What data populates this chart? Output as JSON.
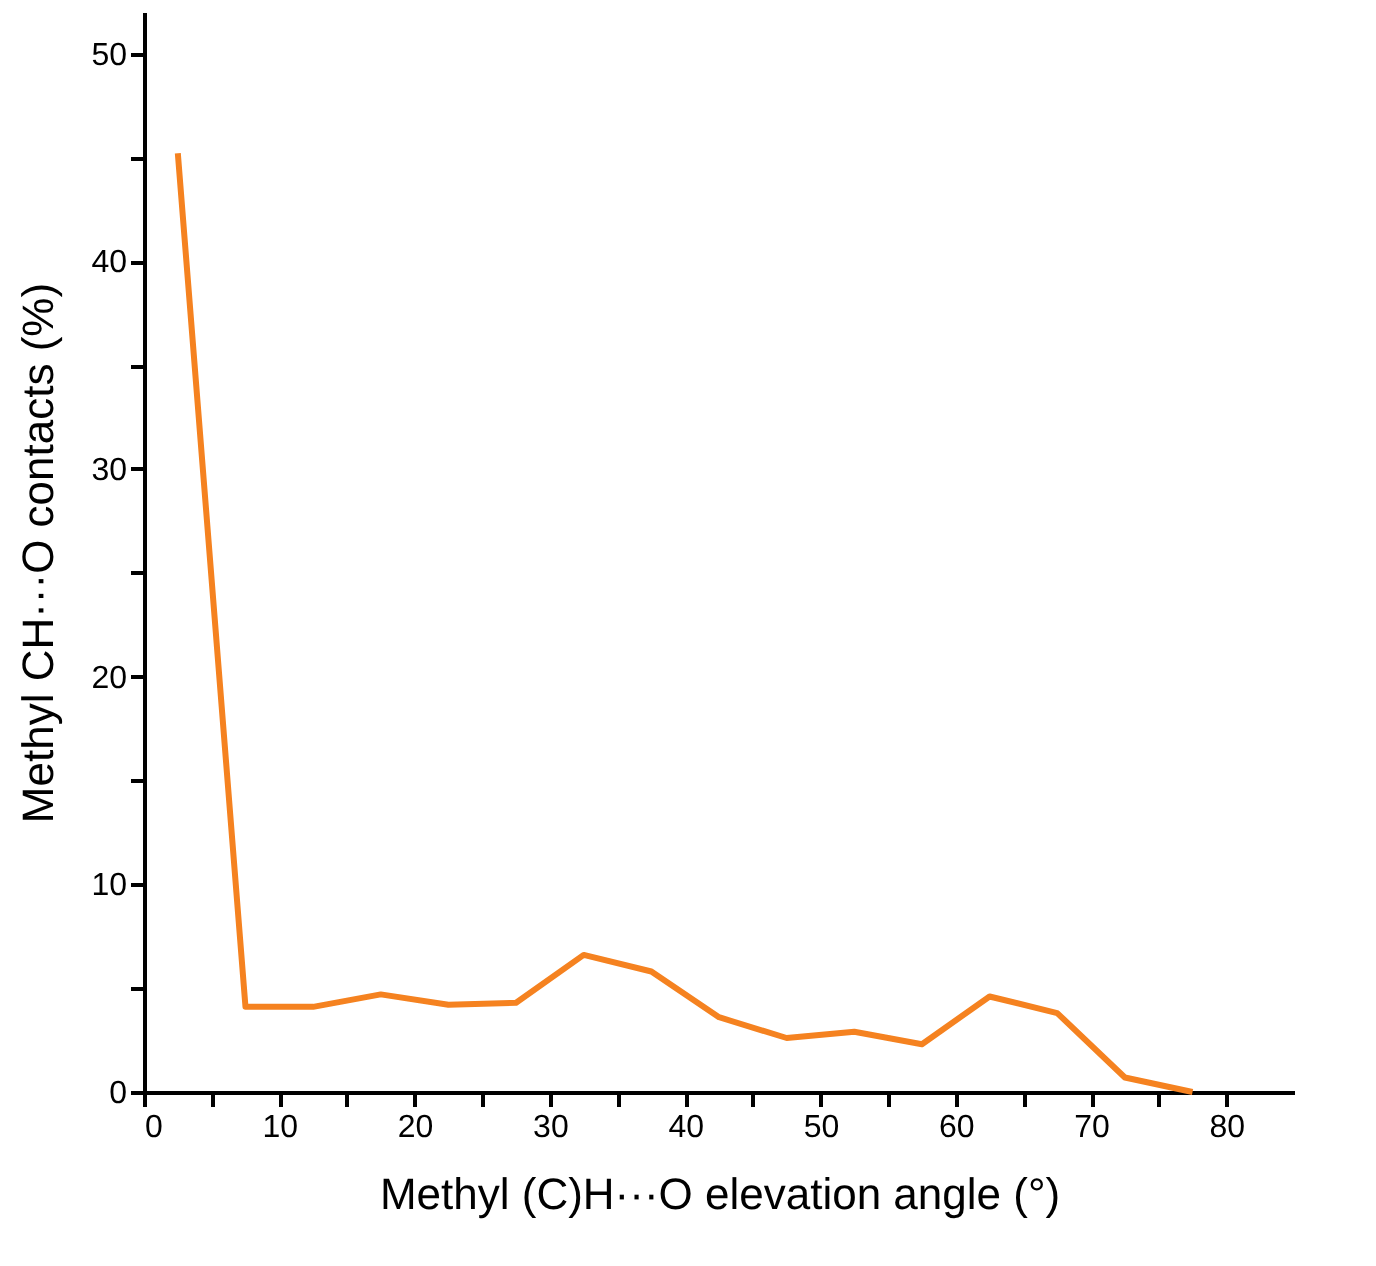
{
  "chart_data": {
    "type": "line",
    "xlabel": "Methyl (C)H···O elevation angle (°)",
    "ylabel": "Methyl CH···O contacts (%)",
    "x": [
      2.5,
      7.5,
      12.5,
      17.5,
      22.5,
      27.5,
      32.5,
      37.5,
      42.5,
      47.5,
      52.5,
      57.5,
      62.5,
      67.5,
      72.5,
      77.5
    ],
    "series": [
      {
        "color": "#f58220",
        "values": [
          45.2,
          4.1,
          4.1,
          4.7,
          4.2,
          4.3,
          6.6,
          5.8,
          3.6,
          2.6,
          2.9,
          2.3,
          4.6,
          3.8,
          0.7,
          0
        ]
      }
    ],
    "xlim": [
      0,
      85
    ],
    "ylim": [
      0,
      52
    ],
    "xticks": [
      0,
      {
        "value": 5,
        "label": null
      },
      10,
      {
        "value": 15,
        "label": null
      },
      20,
      {
        "value": 25,
        "label": null
      },
      30,
      {
        "value": 35,
        "label": null
      },
      40,
      {
        "value": 45,
        "label": null
      },
      50,
      {
        "value": 55,
        "label": null
      },
      60,
      {
        "value": 65,
        "label": null
      },
      70,
      {
        "value": 75,
        "label": null
      },
      80
    ],
    "yticks": [
      0,
      {
        "value": 5,
        "label": null
      },
      10,
      {
        "value": 15,
        "label": null
      },
      20,
      {
        "value": 25,
        "label": null
      },
      30,
      {
        "value": 35,
        "label": null
      },
      40,
      {
        "value": 45,
        "label": null
      },
      50
    ],
    "grid": false,
    "marker": "none",
    "line_style": "solid"
  }
}
